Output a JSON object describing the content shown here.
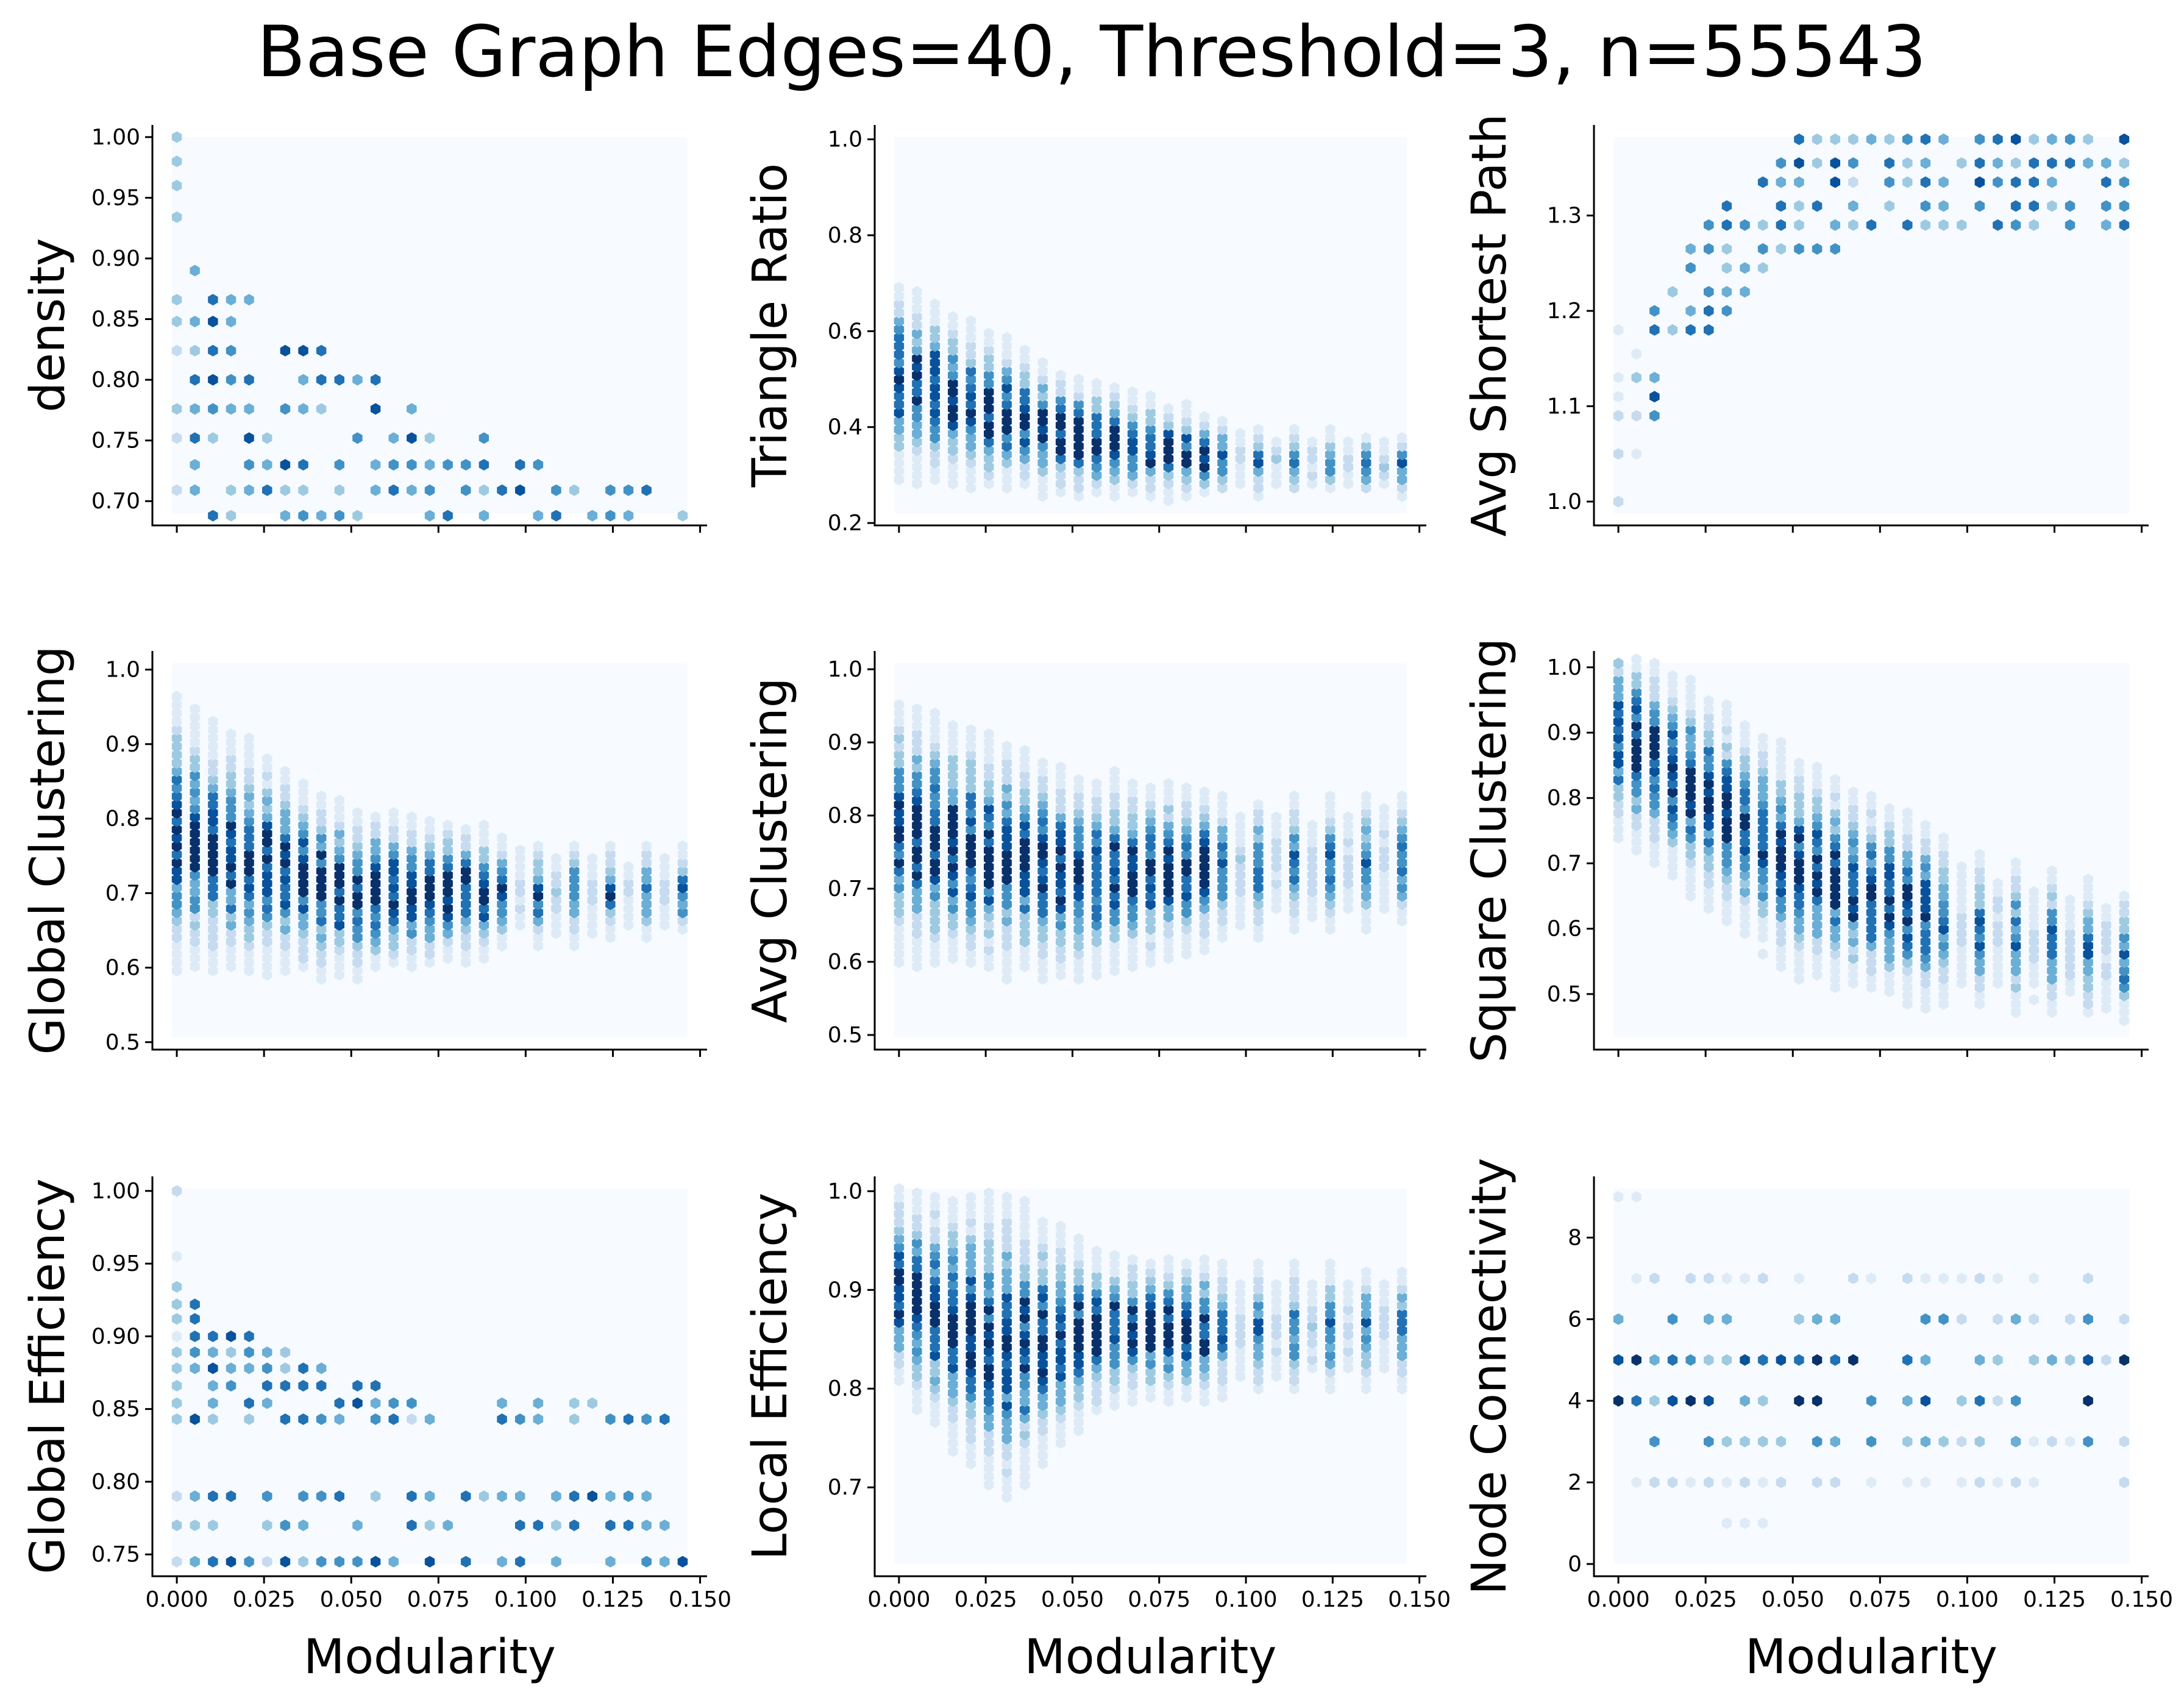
{
  "title": "Base Graph Edges=40, Threshold=3, n=55543",
  "colormap": [
    "#f7fbff",
    "#deebf7",
    "#c6dbef",
    "#9ecae1",
    "#6baed6",
    "#4292c6",
    "#2171b5",
    "#08519c",
    "#08306b"
  ],
  "chart_data": [
    {
      "type": "hexbin",
      "name": "density",
      "ylabel": "density",
      "xlabel": "",
      "xlim": [
        -0.007,
        0.152
      ],
      "ylim": [
        0.68,
        1.01
      ],
      "xticks": [
        "0.000",
        "0.025",
        "0.050",
        "0.075",
        "0.100",
        "0.125",
        "0.150"
      ],
      "yticks": [
        "0.70",
        "0.75",
        "0.80",
        "0.85",
        "0.90",
        "0.95",
        "1.00"
      ],
      "pattern": "discrete",
      "levels": [
        0.688,
        0.709,
        0.73,
        0.752,
        0.776,
        0.8,
        0.824,
        0.848,
        0.866,
        0.89,
        0.913,
        0.934,
        0.96,
        0.98,
        1.0
      ],
      "trend": [
        [
          0.0,
          0.92
        ],
        [
          0.03,
          0.85
        ],
        [
          0.06,
          0.8
        ],
        [
          0.09,
          0.75
        ],
        [
          0.15,
          0.7
        ]
      ],
      "seed": 11
    },
    {
      "type": "hexbin",
      "name": "triangle-ratio",
      "ylabel": "Triangle Ratio",
      "xlabel": "",
      "xlim": [
        -0.007,
        0.152
      ],
      "ylim": [
        0.195,
        1.03
      ],
      "xticks": [
        "0.000",
        "0.025",
        "0.050",
        "0.075",
        "0.100",
        "0.125",
        "0.150"
      ],
      "yticks": [
        "0.2",
        "0.4",
        "0.6",
        "0.8",
        "1.0"
      ],
      "pattern": "cloud",
      "center": [
        [
          0.0,
          0.5,
          0.16
        ],
        [
          0.05,
          0.38,
          0.1
        ],
        [
          0.1,
          0.33,
          0.06
        ],
        [
          0.15,
          0.32,
          0.05
        ]
      ],
      "seed": 23
    },
    {
      "type": "hexbin",
      "name": "avg-shortest-path",
      "ylabel": "Avg Shortest Path",
      "xlabel": "",
      "xlim": [
        -0.007,
        0.152
      ],
      "ylim": [
        0.975,
        1.395
      ],
      "xticks": [
        "0.000",
        "0.025",
        "0.050",
        "0.075",
        "0.100",
        "0.125",
        "0.150"
      ],
      "yticks": [
        "1.0",
        "1.1",
        "1.2",
        "1.3"
      ],
      "pattern": "discrete",
      "levels": [
        1.0,
        1.05,
        1.09,
        1.11,
        1.13,
        1.155,
        1.18,
        1.2,
        1.22,
        1.245,
        1.265,
        1.29,
        1.31,
        1.335,
        1.355,
        1.38
      ],
      "trend": [
        [
          0.0,
          1.05
        ],
        [
          0.02,
          1.2
        ],
        [
          0.05,
          1.3
        ],
        [
          0.15,
          1.33
        ]
      ],
      "invert": true,
      "seed": 37
    },
    {
      "type": "hexbin",
      "name": "global-clustering",
      "ylabel": "Global Clustering",
      "xlabel": "",
      "xlim": [
        -0.007,
        0.152
      ],
      "ylim": [
        0.49,
        1.025
      ],
      "xticks": [
        "0.000",
        "0.025",
        "0.050",
        "0.075",
        "0.100",
        "0.125",
        "0.150"
      ],
      "yticks": [
        "0.5",
        "0.6",
        "0.7",
        "0.8",
        "0.9",
        "1.0"
      ],
      "pattern": "cloud",
      "center": [
        [
          0.0,
          0.78,
          0.14
        ],
        [
          0.05,
          0.7,
          0.09
        ],
        [
          0.1,
          0.7,
          0.06
        ],
        [
          0.15,
          0.7,
          0.05
        ]
      ],
      "seed": 41
    },
    {
      "type": "hexbin",
      "name": "avg-clustering",
      "ylabel": "Avg Clustering",
      "xlabel": "",
      "xlim": [
        -0.007,
        0.152
      ],
      "ylim": [
        0.48,
        1.025
      ],
      "xticks": [
        "0.000",
        "0.025",
        "0.050",
        "0.075",
        "0.100",
        "0.125",
        "0.150"
      ],
      "yticks": [
        "0.5",
        "0.6",
        "0.7",
        "0.8",
        "0.9",
        "1.0"
      ],
      "pattern": "cloud",
      "center": [
        [
          0.0,
          0.78,
          0.14
        ],
        [
          0.05,
          0.72,
          0.11
        ],
        [
          0.1,
          0.73,
          0.08
        ],
        [
          0.15,
          0.74,
          0.07
        ]
      ],
      "seed": 53
    },
    {
      "type": "hexbin",
      "name": "square-clustering",
      "ylabel": "Square Clustering",
      "xlabel": "",
      "xlim": [
        -0.007,
        0.152
      ],
      "ylim": [
        0.415,
        1.025
      ],
      "xticks": [
        "0.000",
        "0.025",
        "0.050",
        "0.075",
        "0.100",
        "0.125",
        "0.150"
      ],
      "yticks": [
        "0.5",
        "0.6",
        "0.7",
        "0.8",
        "0.9",
        "1.0"
      ],
      "pattern": "cloud",
      "center": [
        [
          0.0,
          0.9,
          0.12
        ],
        [
          0.05,
          0.7,
          0.13
        ],
        [
          0.1,
          0.6,
          0.1
        ],
        [
          0.15,
          0.55,
          0.08
        ]
      ],
      "seed": 67
    },
    {
      "type": "hexbin",
      "name": "global-efficiency",
      "ylabel": "Global Efficiency",
      "xlabel": "Modularity",
      "xlim": [
        -0.007,
        0.152
      ],
      "ylim": [
        0.735,
        1.01
      ],
      "xticks": [
        "0.000",
        "0.025",
        "0.050",
        "0.075",
        "0.100",
        "0.125",
        "0.150"
      ],
      "yticks": [
        "0.75",
        "0.80",
        "0.85",
        "0.90",
        "0.95",
        "1.00"
      ],
      "pattern": "discrete",
      "levels": [
        0.745,
        0.77,
        0.79,
        0.843,
        0.854,
        0.866,
        0.878,
        0.889,
        0.9,
        0.912,
        0.922,
        0.934,
        0.955,
        0.978,
        1.0
      ],
      "trend": [
        [
          0.0,
          0.93
        ],
        [
          0.04,
          0.88
        ],
        [
          0.08,
          0.86
        ],
        [
          0.15,
          0.85
        ]
      ],
      "seed": 71
    },
    {
      "type": "hexbin",
      "name": "local-efficiency",
      "ylabel": "Local Efficiency",
      "xlabel": "Modularity",
      "xlim": [
        -0.007,
        0.152
      ],
      "ylim": [
        0.61,
        1.015
      ],
      "xticks": [
        "0.000",
        "0.025",
        "0.050",
        "0.075",
        "0.100",
        "0.125",
        "0.150"
      ],
      "yticks": [
        "0.7",
        "0.8",
        "0.9",
        "1.0"
      ],
      "pattern": "cloud",
      "center": [
        [
          0.0,
          0.9,
          0.08
        ],
        [
          0.03,
          0.84,
          0.12
        ],
        [
          0.06,
          0.86,
          0.06
        ],
        [
          0.15,
          0.86,
          0.05
        ]
      ],
      "seed": 89
    },
    {
      "type": "hexbin",
      "name": "node-connectivity",
      "ylabel": "Node Connectivity",
      "xlabel": "Modularity",
      "xlim": [
        -0.007,
        0.152
      ],
      "ylim": [
        -0.3,
        9.5
      ],
      "xticks": [
        "0.000",
        "0.025",
        "0.050",
        "0.075",
        "0.100",
        "0.125",
        "0.150"
      ],
      "yticks": [
        "0",
        "2",
        "4",
        "6",
        "8"
      ],
      "pattern": "discrete",
      "levels": [
        0,
        1,
        2,
        3,
        4,
        5,
        6,
        7,
        8,
        9
      ],
      "trend": [
        [
          0.0,
          4.5
        ],
        [
          0.15,
          4.5
        ]
      ],
      "strong": [
        4,
        5
      ],
      "seed": 97
    }
  ]
}
